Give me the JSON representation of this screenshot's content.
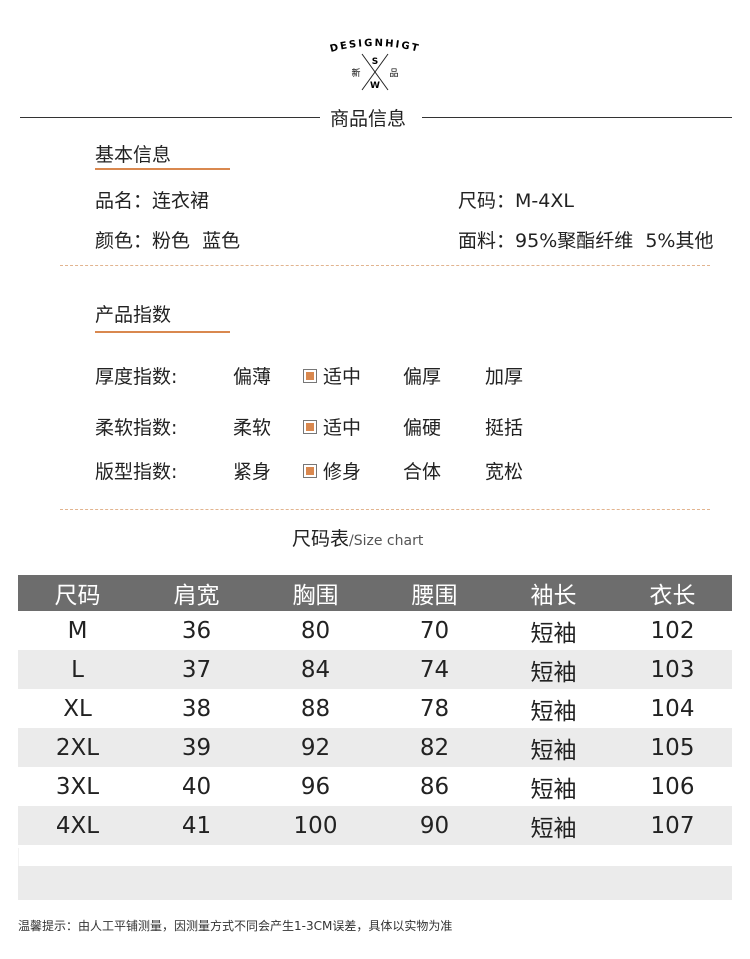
{
  "logo": {
    "brand": "DESIGNHIGT",
    "letters": [
      "S",
      "W"
    ],
    "chars": [
      "新",
      "品"
    ]
  },
  "header": {
    "title": "商品信息"
  },
  "basic": {
    "title": "基本信息",
    "name_label": "品名：",
    "name": "连衣裙",
    "size_label": "尺码：",
    "size": "M-4XL",
    "color_label": "颜色：",
    "color": "粉色  蓝色",
    "fabric_label": "面料：",
    "fabric": "95%聚酯纤维  5%其他"
  },
  "index": {
    "title": "产品指数",
    "accent": "#d9884f",
    "rows": [
      {
        "label": "厚度指数:",
        "options": [
          "偏薄",
          "适中",
          "偏厚",
          "加厚"
        ],
        "selected": 1
      },
      {
        "label": "柔软指数:",
        "options": [
          "柔软",
          "适中",
          "偏硬",
          "挺括"
        ],
        "selected": 1
      },
      {
        "label": "版型指数:",
        "options": [
          "紧身",
          "修身",
          "合体",
          "宽松"
        ],
        "selected": 1
      }
    ]
  },
  "size_chart": {
    "title": "尺码表",
    "subtitle": "/Size chart",
    "headers": [
      "尺码",
      "肩宽",
      "胸围",
      "腰围",
      "袖长",
      "衣长"
    ],
    "rows": [
      [
        "M",
        "36",
        "80",
        "70",
        "短袖",
        "102"
      ],
      [
        "L",
        "37",
        "84",
        "74",
        "短袖",
        "103"
      ],
      [
        "XL",
        "38",
        "88",
        "78",
        "短袖",
        "104"
      ],
      [
        "2XL",
        "39",
        "92",
        "82",
        "短袖",
        "105"
      ],
      [
        "3XL",
        "40",
        "96",
        "86",
        "短袖",
        "106"
      ],
      [
        "4XL",
        "41",
        "100",
        "90",
        "短袖",
        "107"
      ]
    ]
  },
  "note": "温馨提示：由人工平铺测量，因测量方式不同会产生1-3CM误差，具体以实物为准"
}
